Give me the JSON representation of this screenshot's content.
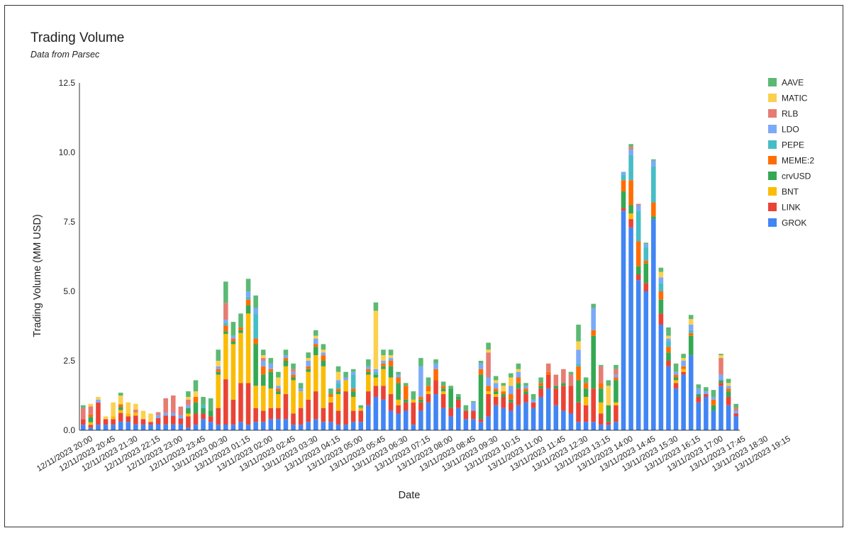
{
  "chart_data": {
    "type": "bar",
    "stacked": true,
    "title": "Trading Volume",
    "subtitle": "Data from Parsec",
    "xlabel": "Date",
    "ylabel": "Trading Volume (MM USD)",
    "ylim": [
      0,
      12.5
    ],
    "yticks": [
      "0.0",
      "2.5",
      "5.0",
      "7.5",
      "10.0",
      "12.5"
    ],
    "ytick_values": [
      0,
      2.5,
      5,
      7.5,
      10,
      12.5
    ],
    "grid": false,
    "legend_position": "right",
    "x_tick_labels": [
      "12/11/2023 20:00",
      "12/11/2023 20:45",
      "12/11/2023 21:30",
      "12/11/2023 22:15",
      "12/11/2023 23:00",
      "12/11/2023 23:45",
      "13/11/2023 00:30",
      "13/11/2023 01:15",
      "13/11/2023 02:00",
      "13/11/2023 02:45",
      "13/11/2023 03:30",
      "13/11/2023 04:15",
      "13/11/2023 05:00",
      "13/11/2023 05:45",
      "13/11/2023 06:30",
      "13/11/2023 07:15",
      "13/11/2023 08:00",
      "13/11/2023 08:45",
      "13/11/2023 09:30",
      "13/11/2023 10:15",
      "13/11/2023 11:00",
      "13/11/2023 11:45",
      "13/11/2023 12:30",
      "13/11/2023 13:15",
      "13/11/2023 14:00",
      "13/11/2023 14:45",
      "13/11/2023 15:30",
      "13/11/2023 16:15",
      "13/11/2023 17:00",
      "13/11/2023 17:45",
      "13/11/2023 18:30",
      "13/11/2023 19:15"
    ],
    "series_order_bottom_to_top": [
      "GROK",
      "LINK",
      "BNT",
      "crvUSD",
      "MEME:2",
      "PEPE",
      "LDO",
      "RLB",
      "MATIC",
      "AAVE"
    ],
    "legend": [
      {
        "name": "AAVE",
        "color": "#5bb974"
      },
      {
        "name": "MATIC",
        "color": "#fcd04f"
      },
      {
        "name": "RLB",
        "color": "#e67c73"
      },
      {
        "name": "LDO",
        "color": "#7baaf7"
      },
      {
        "name": "PEPE",
        "color": "#46bdc6"
      },
      {
        "name": "MEME:2",
        "color": "#ff6d01"
      },
      {
        "name": "crvUSD",
        "color": "#34a853"
      },
      {
        "name": "BNT",
        "color": "#fbbc04"
      },
      {
        "name": "LINK",
        "color": "#ea4335"
      },
      {
        "name": "GROK",
        "color": "#4285f4"
      }
    ],
    "totals": [
      0.9,
      0.95,
      1.2,
      0.5,
      1.0,
      1.35,
      1.0,
      0.95,
      0.7,
      0.6,
      0.65,
      1.15,
      1.25,
      0.85,
      1.4,
      1.8,
      1.2,
      1.15,
      2.9,
      5.35,
      3.9,
      4.2,
      5.45,
      4.85,
      2.9,
      2.6,
      2.1,
      2.9,
      2.4,
      1.7,
      2.8,
      3.6,
      3.1,
      1.5,
      2.3,
      2.1,
      2.2,
      0.9,
      2.55,
      4.6,
      2.9,
      2.9,
      2.1,
      1.7,
      1.4,
      2.6,
      1.9,
      2.55,
      1.75,
      1.6,
      1.3,
      0.9,
      1.05,
      2.5,
      3.15,
      1.95,
      1.7,
      2.05,
      2.4,
      1.7,
      1.3,
      1.9,
      2.4,
      2.0,
      2.2,
      2.1,
      3.8,
      1.9,
      4.55,
      2.35,
      1.8,
      2.35,
      9.3,
      10.3,
      8.15,
      6.75,
      9.75,
      5.85,
      3.7,
      2.4,
      2.75,
      4.15,
      1.65,
      1.55,
      1.45,
      2.75,
      1.85,
      0.95
    ],
    "values": [
      [
        0.2,
        0.2,
        0.0,
        0.0,
        0.0,
        0.0,
        0.0,
        0.4,
        0.0,
        0.1
      ],
      [
        0.1,
        0.1,
        0.1,
        0.2,
        0.1,
        0.0,
        0.0,
        0.3,
        0.1,
        0.0
      ],
      [
        0.2,
        0.8,
        0.0,
        0.0,
        0.0,
        0.0,
        0.1,
        0.0,
        0.1,
        0.0
      ],
      [
        0.2,
        0.2,
        0.0,
        0.0,
        0.0,
        0.0,
        0.0,
        0.0,
        0.1,
        0.0
      ],
      [
        0.2,
        0.2,
        0.1,
        0.0,
        0.0,
        0.0,
        0.0,
        0.0,
        0.5,
        0.0
      ],
      [
        0.3,
        0.3,
        0.1,
        0.1,
        0.1,
        0.0,
        0.0,
        0.0,
        0.3,
        0.1
      ],
      [
        0.3,
        0.2,
        0.1,
        0.0,
        0.0,
        0.0,
        0.0,
        0.0,
        0.4,
        0.0
      ],
      [
        0.2,
        0.3,
        0.1,
        0.0,
        0.0,
        0.0,
        0.0,
        0.1,
        0.2,
        0.0
      ],
      [
        0.2,
        0.2,
        0.0,
        0.0,
        0.0,
        0.0,
        0.0,
        0.0,
        0.3,
        0.0
      ],
      [
        0.2,
        0.1,
        0.0,
        0.0,
        0.0,
        0.0,
        0.0,
        0.0,
        0.3,
        0.0
      ],
      [
        0.2,
        0.2,
        0.0,
        0.0,
        0.0,
        0.0,
        0.1,
        0.1,
        0.0,
        0.0
      ],
      [
        0.2,
        0.3,
        0.0,
        0.0,
        0.0,
        0.0,
        0.1,
        0.5,
        0.0,
        0.0
      ],
      [
        0.2,
        0.3,
        0.0,
        0.0,
        0.0,
        0.0,
        0.1,
        0.6,
        0.0,
        0.0
      ],
      [
        0.2,
        0.2,
        0.0,
        0.0,
        0.0,
        0.0,
        0.1,
        0.3,
        0.0,
        0.0
      ],
      [
        0.1,
        0.4,
        0.1,
        0.2,
        0.0,
        0.0,
        0.1,
        0.2,
        0.1,
        0.2
      ],
      [
        0.2,
        0.4,
        0.0,
        0.4,
        0.2,
        0.0,
        0.0,
        0.0,
        0.2,
        0.4
      ],
      [
        0.4,
        0.2,
        0.0,
        0.2,
        0.0,
        0.1,
        0.0,
        0.0,
        0.0,
        0.3
      ],
      [
        0.3,
        0.2,
        0.0,
        0.2,
        0.0,
        0.0,
        0.0,
        0.0,
        0.0,
        0.45
      ],
      [
        0.2,
        0.6,
        1.2,
        0.1,
        0.1,
        0.0,
        0.1,
        0.0,
        0.2,
        0.4
      ],
      [
        0.2,
        1.6,
        1.6,
        0.1,
        0.2,
        0.1,
        0.1,
        0.6,
        0.0,
        0.75
      ],
      [
        0.2,
        0.9,
        2.0,
        0.1,
        0.1,
        0.0,
        0.1,
        0.0,
        0.0,
        0.5
      ],
      [
        0.3,
        1.4,
        1.8,
        0.1,
        0.1,
        0.0,
        0.0,
        0.0,
        0.0,
        0.5
      ],
      [
        0.2,
        1.5,
        2.5,
        0.3,
        0.2,
        0.1,
        0.2,
        0.0,
        0.0,
        0.45
      ],
      [
        0.3,
        0.5,
        0.8,
        1.5,
        0.2,
        0.9,
        0.2,
        0.0,
        0.0,
        0.45
      ],
      [
        0.3,
        0.4,
        0.9,
        0.4,
        0.3,
        0.0,
        0.2,
        0.1,
        0.1,
        0.2
      ],
      [
        0.4,
        0.4,
        0.7,
        0.6,
        0.1,
        0.0,
        0.2,
        0.0,
        0.0,
        0.2
      ],
      [
        0.4,
        0.4,
        0.5,
        0.1,
        0.1,
        0.0,
        0.1,
        0.0,
        0.3,
        0.2
      ],
      [
        0.4,
        0.9,
        1.0,
        0.2,
        0.1,
        0.0,
        0.1,
        0.0,
        0.0,
        0.2
      ],
      [
        0.2,
        0.4,
        1.2,
        0.1,
        0.1,
        0.0,
        0.1,
        0.1,
        0.0,
        0.2
      ],
      [
        0.2,
        0.6,
        0.6,
        0.0,
        0.0,
        0.0,
        0.1,
        0.0,
        0.0,
        0.2
      ],
      [
        0.3,
        0.8,
        1.0,
        0.1,
        0.1,
        0.0,
        0.2,
        0.0,
        0.1,
        0.2
      ],
      [
        0.4,
        1.0,
        1.3,
        0.3,
        0.1,
        0.0,
        0.2,
        0.0,
        0.1,
        0.2
      ],
      [
        0.3,
        0.5,
        1.5,
        0.2,
        0.2,
        0.0,
        0.1,
        0.0,
        0.1,
        0.2
      ],
      [
        0.3,
        0.7,
        0.2,
        0.0,
        0.1,
        0.0,
        0.0,
        0.0,
        0.0,
        0.2
      ],
      [
        0.2,
        0.5,
        0.6,
        0.1,
        0.1,
        0.2,
        0.1,
        0.0,
        0.3,
        0.2
      ],
      [
        0.2,
        1.2,
        0.4,
        0.0,
        0.0,
        0.0,
        0.1,
        0.0,
        0.0,
        0.2
      ],
      [
        0.3,
        0.4,
        0.5,
        0.2,
        0.1,
        0.5,
        0.1,
        0.0,
        0.0,
        0.1
      ],
      [
        0.3,
        0.4,
        0.1,
        0.0,
        0.0,
        0.0,
        0.0,
        0.0,
        0.0,
        0.1
      ],
      [
        0.9,
        0.5,
        0.6,
        0.1,
        0.1,
        0.0,
        0.1,
        0.0,
        0.0,
        0.25
      ],
      [
        1.2,
        0.4,
        0.3,
        0.1,
        0.0,
        0.1,
        0.1,
        0.0,
        2.1,
        0.3
      ],
      [
        1.1,
        0.5,
        0.6,
        0.1,
        0.1,
        0.0,
        0.1,
        0.0,
        0.2,
        0.2
      ],
      [
        0.7,
        0.6,
        0.6,
        0.4,
        0.2,
        0.0,
        0.1,
        0.0,
        0.1,
        0.2
      ],
      [
        0.6,
        0.3,
        0.2,
        0.6,
        0.2,
        0.0,
        0.1,
        0.0,
        0.0,
        0.1
      ],
      [
        0.7,
        0.3,
        0.0,
        0.1,
        0.5,
        0.0,
        0.0,
        0.0,
        0.0,
        0.1
      ],
      [
        0.2,
        0.8,
        0.1,
        0.0,
        0.0,
        0.0,
        0.0,
        0.0,
        0.0,
        0.3
      ],
      [
        0.7,
        0.3,
        0.0,
        0.1,
        0.1,
        0.0,
        1.1,
        0.0,
        0.0,
        0.3
      ],
      [
        1.0,
        0.3,
        0.1,
        0.0,
        0.2,
        0.0,
        0.0,
        0.0,
        0.0,
        0.3
      ],
      [
        1.3,
        0.5,
        0.0,
        0.0,
        0.4,
        0.0,
        0.2,
        0.0,
        0.0,
        0.15
      ],
      [
        0.8,
        0.5,
        0.1,
        0.1,
        0.1,
        0.0,
        0.0,
        0.0,
        0.0,
        0.15
      ],
      [
        0.5,
        0.3,
        0.0,
        0.7,
        0.0,
        0.0,
        0.0,
        0.0,
        0.0,
        0.1
      ],
      [
        0.8,
        0.3,
        0.0,
        0.1,
        0.0,
        0.0,
        0.0,
        0.0,
        0.0,
        0.1
      ],
      [
        0.4,
        0.3,
        0.0,
        0.0,
        0.0,
        0.0,
        0.0,
        0.0,
        0.0,
        0.2
      ],
      [
        0.4,
        0.3,
        0.0,
        0.0,
        0.0,
        0.0,
        0.3,
        0.0,
        0.0,
        0.05
      ],
      [
        0.3,
        0.1,
        0.0,
        1.6,
        0.2,
        0.0,
        0.2,
        0.0,
        0.0,
        0.1
      ],
      [
        0.5,
        0.8,
        0.1,
        0.0,
        0.2,
        0.0,
        0.3,
        0.9,
        0.1,
        0.25
      ],
      [
        0.9,
        0.3,
        0.1,
        0.1,
        0.1,
        0.0,
        0.2,
        0.0,
        0.1,
        0.15
      ],
      [
        0.8,
        0.4,
        0.0,
        0.1,
        0.1,
        0.0,
        0.0,
        0.0,
        0.2,
        0.1
      ],
      [
        0.7,
        0.3,
        0.0,
        0.1,
        0.2,
        0.0,
        0.3,
        0.0,
        0.3,
        0.15
      ],
      [
        0.9,
        0.6,
        0.0,
        0.2,
        0.2,
        0.0,
        0.2,
        0.0,
        0.1,
        0.2
      ],
      [
        1.0,
        0.3,
        0.0,
        0.1,
        0.1,
        0.0,
        0.1,
        0.0,
        0.0,
        0.1
      ],
      [
        0.8,
        0.2,
        0.0,
        0.0,
        0.0,
        0.0,
        0.1,
        0.0,
        0.0,
        0.2
      ],
      [
        1.2,
        0.3,
        0.0,
        0.1,
        0.1,
        0.0,
        0.0,
        0.0,
        0.0,
        0.2
      ],
      [
        1.5,
        0.5,
        0.0,
        0.0,
        0.1,
        0.0,
        0.0,
        0.3,
        0.0,
        0.0
      ],
      [
        0.9,
        0.6,
        0.0,
        0.1,
        0.0,
        0.0,
        0.0,
        0.4,
        0.0,
        0.0
      ],
      [
        0.7,
        0.9,
        0.0,
        0.1,
        0.0,
        0.0,
        0.0,
        0.5,
        0.0,
        0.0
      ],
      [
        0.6,
        1.0,
        0.0,
        0.0,
        0.0,
        0.0,
        0.0,
        0.4,
        0.0,
        0.1
      ],
      [
        0.3,
        0.7,
        0.0,
        0.8,
        0.5,
        0.1,
        0.5,
        0.0,
        0.3,
        0.6
      ],
      [
        0.3,
        0.6,
        0.3,
        0.3,
        0.2,
        0.0,
        0.0,
        0.0,
        0.0,
        0.2
      ],
      [
        0.3,
        1.2,
        0.0,
        1.9,
        0.2,
        0.0,
        0.8,
        0.0,
        0.0,
        0.15
      ],
      [
        0.2,
        0.4,
        0.4,
        0.5,
        0.2,
        0.0,
        0.0,
        0.6,
        0.0,
        0.05
      ],
      [
        0.2,
        0.1,
        0.0,
        0.6,
        0.0,
        0.0,
        0.0,
        0.0,
        0.7,
        0.2
      ],
      [
        0.3,
        0.6,
        0.1,
        0.8,
        0.1,
        0.0,
        0.1,
        0.2,
        0.0,
        0.15
      ],
      [
        7.9,
        0.1,
        0.0,
        0.6,
        0.4,
        0.2,
        0.1,
        0.0,
        0.0,
        0.0
      ],
      [
        7.3,
        0.3,
        0.2,
        0.3,
        0.9,
        0.9,
        0.2,
        0.1,
        0.0,
        0.1
      ],
      [
        5.4,
        0.2,
        0.0,
        0.3,
        0.9,
        1.1,
        0.2,
        0.05,
        0.0,
        0.0
      ],
      [
        5.0,
        0.3,
        0.0,
        0.7,
        0.1,
        0.5,
        0.1,
        0.0,
        0.0,
        0.05
      ],
      [
        7.6,
        0.0,
        0.0,
        0.1,
        0.5,
        1.3,
        0.2,
        0.0,
        0.0,
        0.05
      ],
      [
        3.8,
        0.4,
        0.0,
        0.5,
        0.3,
        0.3,
        0.2,
        0.0,
        0.2,
        0.15
      ],
      [
        2.3,
        0.2,
        0.0,
        0.3,
        0.2,
        0.2,
        0.1,
        0.0,
        0.1,
        0.3
      ],
      [
        1.5,
        0.2,
        0.1,
        0.1,
        0.1,
        0.0,
        0.1,
        0.0,
        0.0,
        0.3
      ],
      [
        2.0,
        0.1,
        0.1,
        0.0,
        0.1,
        0.0,
        0.2,
        0.0,
        0.1,
        0.15
      ],
      [
        2.7,
        0.0,
        0.0,
        0.7,
        0.1,
        0.1,
        0.2,
        0.0,
        0.2,
        0.15
      ],
      [
        1.0,
        0.2,
        0.0,
        0.1,
        0.0,
        0.0,
        0.2,
        0.0,
        0.0,
        0.15
      ],
      [
        1.2,
        0.1,
        0.0,
        0.0,
        0.0,
        0.0,
        0.1,
        0.0,
        0.0,
        0.15
      ],
      [
        0.7,
        0.0,
        0.0,
        0.2,
        0.2,
        0.0,
        0.1,
        0.0,
        0.0,
        0.25
      ],
      [
        1.6,
        0.1,
        0.0,
        0.1,
        0.0,
        0.0,
        0.2,
        0.6,
        0.1,
        0.05
      ],
      [
        0.9,
        0.3,
        0.0,
        0.2,
        0.1,
        0.0,
        0.1,
        0.0,
        0.1,
        0.15
      ],
      [
        0.5,
        0.1,
        0.0,
        0.0,
        0.0,
        0.0,
        0.1,
        0.1,
        0.0,
        0.15
      ]
    ]
  }
}
